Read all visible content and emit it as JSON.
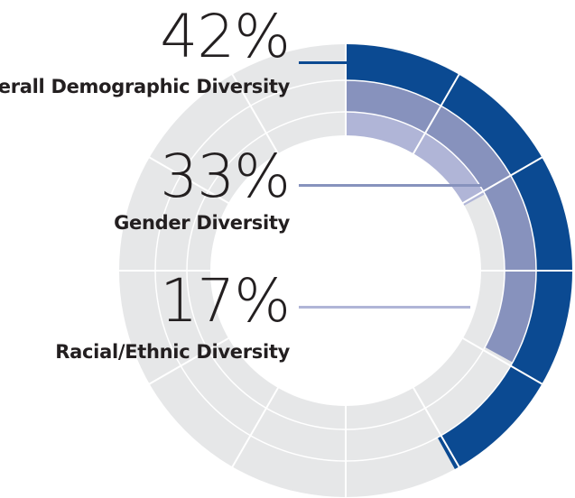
{
  "chart_data": {
    "type": "radial-bar",
    "segments_per_ring": 12,
    "track_color": "#e6e7e8",
    "separator_color": "#ffffff",
    "series": [
      {
        "value": 42,
        "percent_label": "42%",
        "label": "Overall Demographic Diversity",
        "color": "#0b4a92"
      },
      {
        "value": 33,
        "percent_label": "33%",
        "label": "Gender Diversity",
        "color": "#8792bd"
      },
      {
        "value": 17,
        "percent_label": "17%",
        "label": "Racial/Ethnic Diversity",
        "color": "#b0b5d7"
      }
    ]
  }
}
